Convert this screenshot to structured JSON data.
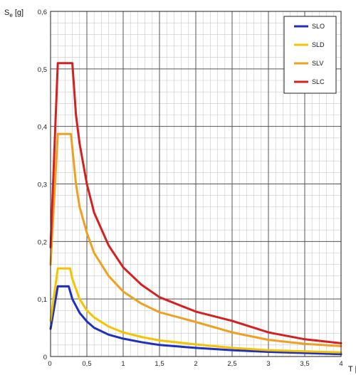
{
  "chart_data": {
    "type": "line",
    "ylabel_main": "S",
    "ylabel_sub": "e",
    "ylabel_unit": " [g]",
    "xlabel": "T [",
    "xlim": [
      0,
      4
    ],
    "ylim": [
      0,
      0.6
    ],
    "grid": true,
    "legend_placement": "top-right",
    "x_major_ticks": [
      0,
      0.5,
      1,
      1.5,
      2,
      2.5,
      3,
      3.5,
      4
    ],
    "x_tick_labels": [
      "0",
      "0,5",
      "1",
      "1,5",
      "2",
      "2,5",
      "3",
      "3,5",
      "4"
    ],
    "y_major_ticks": [
      0,
      0.1,
      0.2,
      0.3,
      0.4,
      0.5,
      0.6
    ],
    "y_tick_labels": [
      "0",
      "0,1",
      "0,2",
      "0,3",
      "0,4",
      "0,5",
      "0,6"
    ],
    "series": [
      {
        "name": "SLO",
        "color": "#1f2fbf",
        "x": [
          0,
          0.1,
          0.25,
          0.3,
          0.4,
          0.5,
          0.6,
          0.8,
          1.0,
          1.25,
          1.5,
          2.0,
          2.5,
          3.0,
          3.5,
          4.0
        ],
        "y": [
          0.048,
          0.122,
          0.122,
          0.1,
          0.076,
          0.061,
          0.05,
          0.038,
          0.031,
          0.025,
          0.02,
          0.015,
          0.011,
          0.008,
          0.006,
          0.004
        ]
      },
      {
        "name": "SLD",
        "color": "#f5c400",
        "x": [
          0,
          0.1,
          0.27,
          0.3,
          0.4,
          0.5,
          0.6,
          0.8,
          1.0,
          1.25,
          1.5,
          2.0,
          2.5,
          3.0,
          3.5,
          4.0
        ],
        "y": [
          0.062,
          0.153,
          0.153,
          0.135,
          0.1,
          0.08,
          0.068,
          0.052,
          0.042,
          0.034,
          0.028,
          0.021,
          0.015,
          0.011,
          0.009,
          0.007
        ]
      },
      {
        "name": "SLV",
        "color": "#f0a020",
        "x": [
          0,
          0.1,
          0.28,
          0.35,
          0.4,
          0.5,
          0.6,
          0.8,
          1.0,
          1.25,
          1.5,
          2.0,
          2.5,
          3.0,
          3.5,
          4.0
        ],
        "y": [
          0.16,
          0.387,
          0.387,
          0.3,
          0.26,
          0.215,
          0.18,
          0.14,
          0.113,
          0.092,
          0.077,
          0.06,
          0.042,
          0.029,
          0.022,
          0.018
        ]
      },
      {
        "name": "SLC",
        "color": "#d42020",
        "x": [
          0,
          0.1,
          0.3,
          0.35,
          0.4,
          0.5,
          0.6,
          0.8,
          1.0,
          1.25,
          1.5,
          2.0,
          2.5,
          3.0,
          3.5,
          4.0
        ],
        "y": [
          0.19,
          0.51,
          0.51,
          0.42,
          0.37,
          0.3,
          0.25,
          0.193,
          0.155,
          0.125,
          0.103,
          0.078,
          0.062,
          0.042,
          0.03,
          0.023
        ]
      }
    ]
  }
}
